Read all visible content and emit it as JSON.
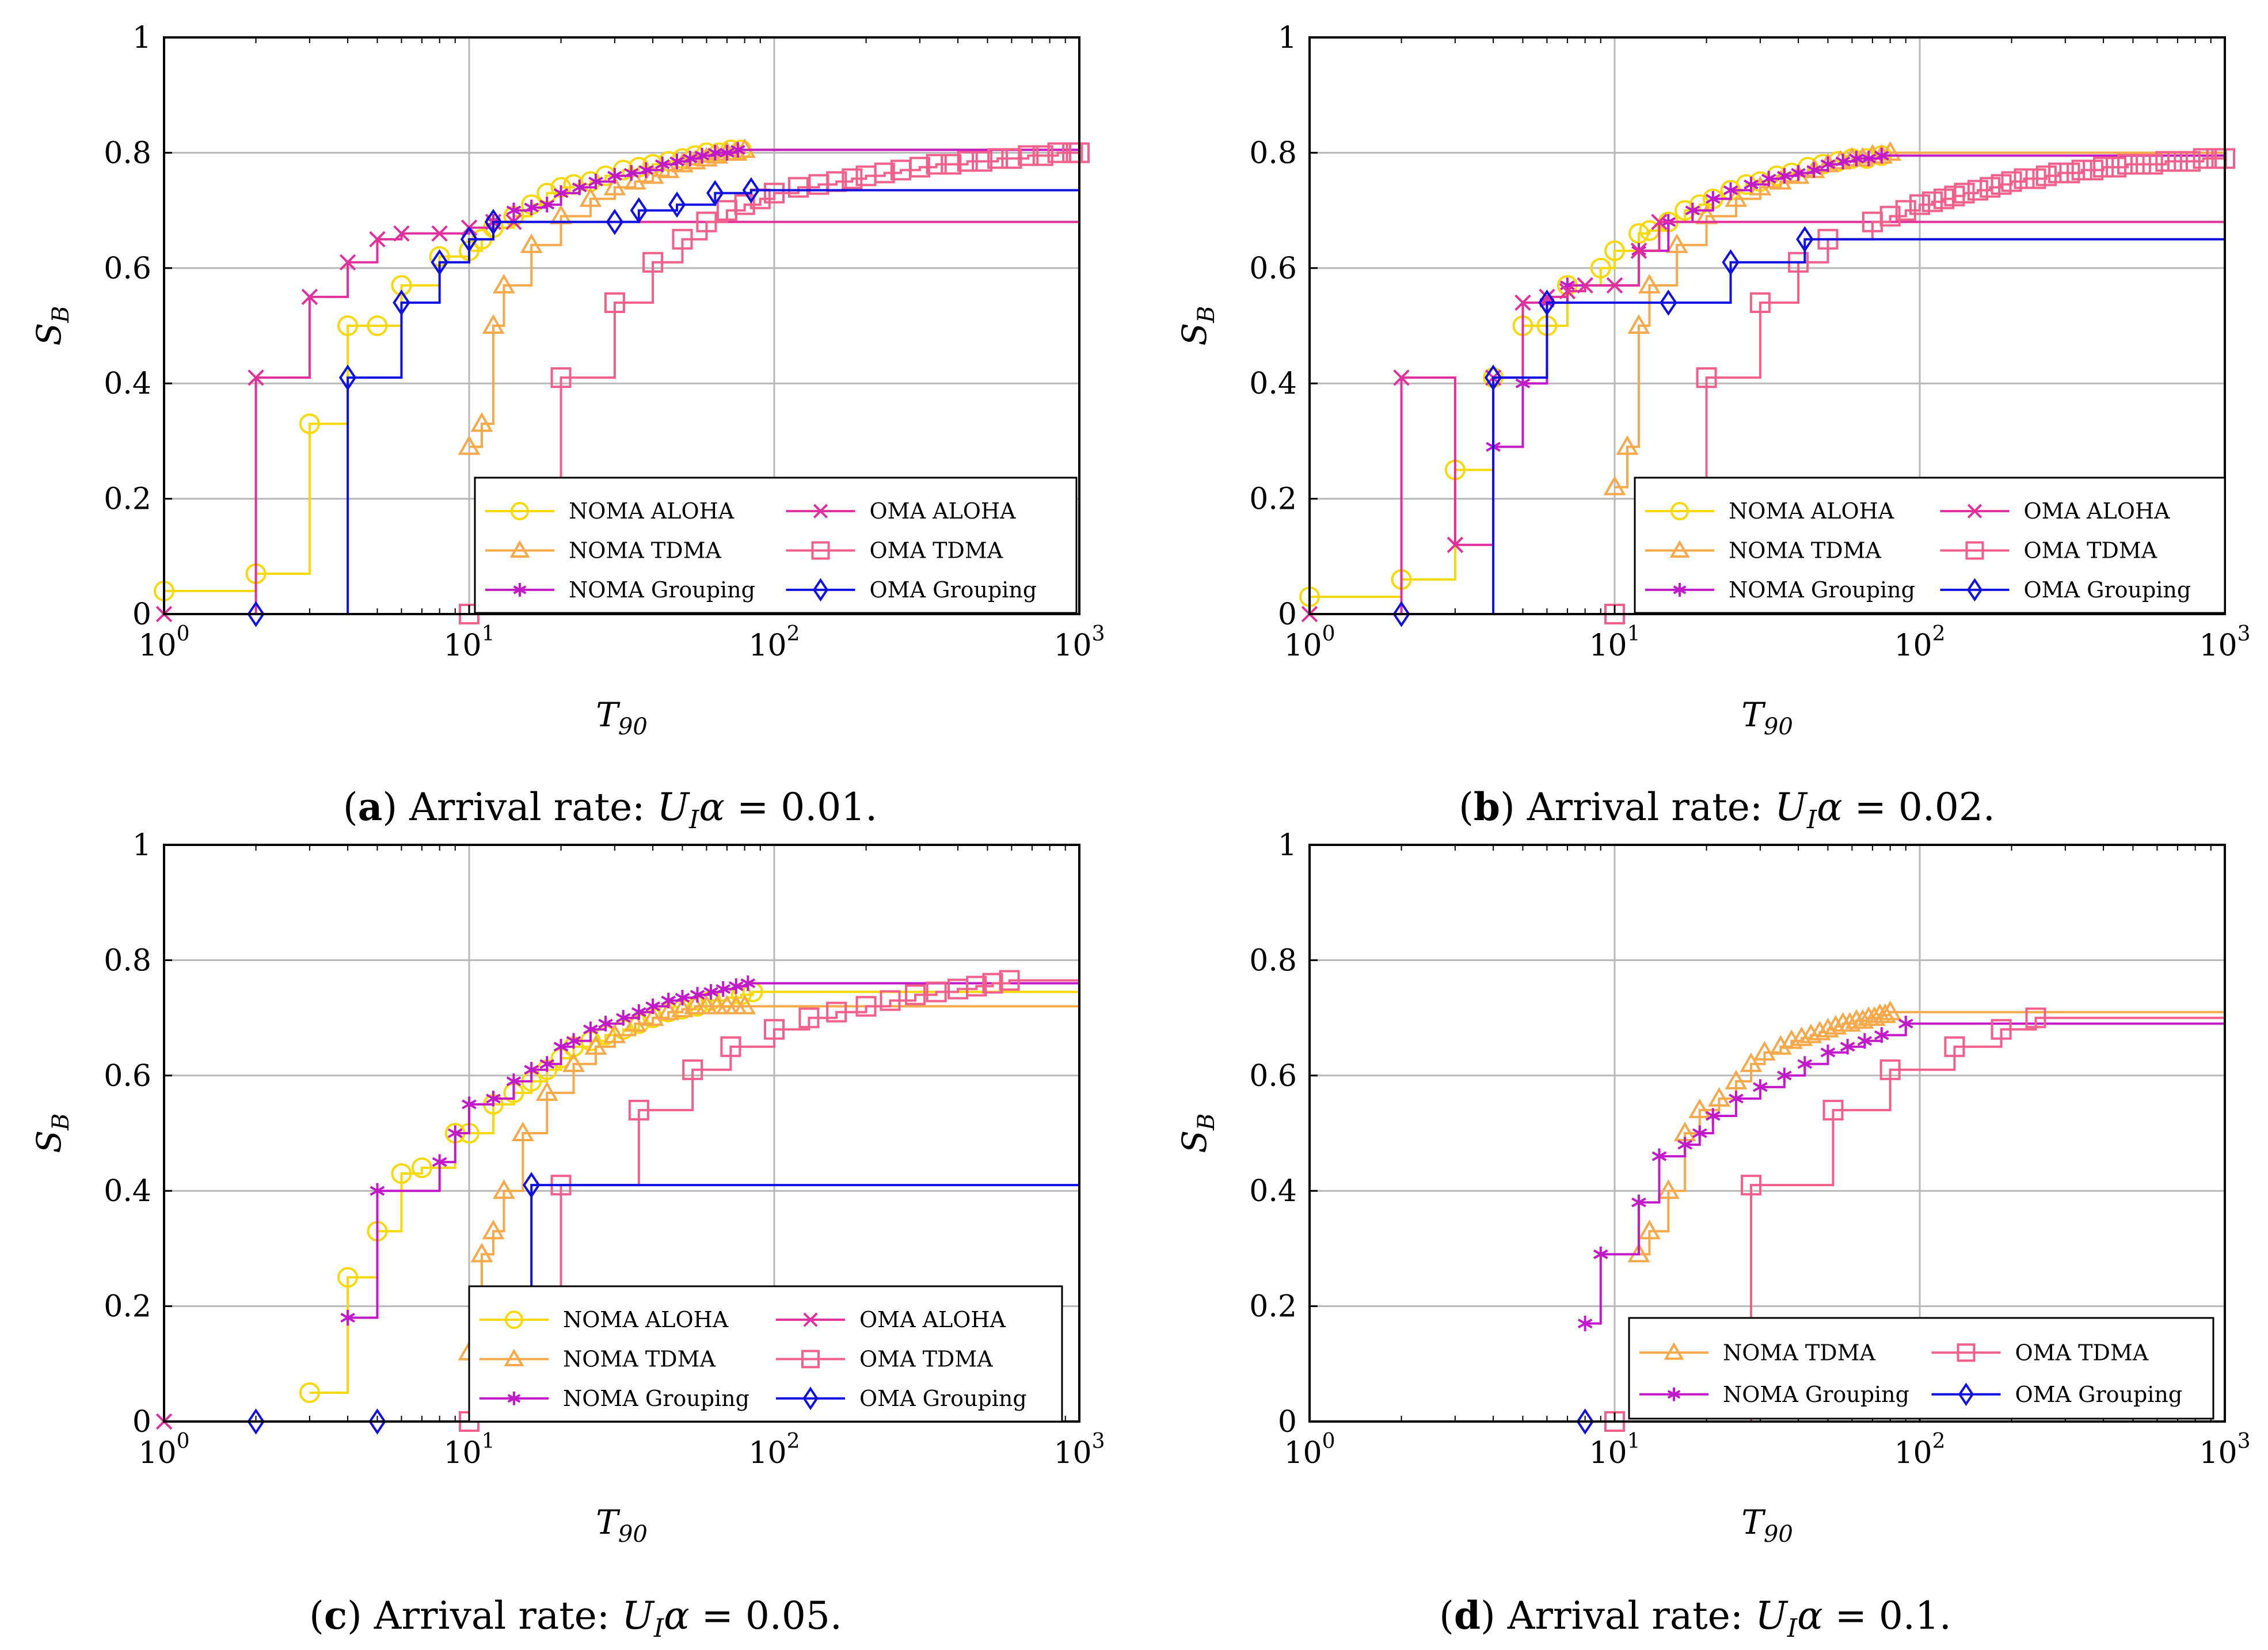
{
  "chart_data": [
    {
      "type": "line",
      "panel": "a",
      "caption": {
        "label": "a",
        "text": "Arrival rate:",
        "math": "U",
        "math_sub": "I",
        "math_alpha": "α",
        "value": " = 0.01."
      },
      "xlabel": "T",
      "xlabel_sub": "90",
      "ylabel": "S",
      "ylabel_sub": "B",
      "xscale": "log",
      "xlim": [
        1,
        1000
      ],
      "ylim": [
        0,
        1
      ],
      "xticks": [
        {
          "base": "10",
          "exp": "0"
        },
        {
          "base": "10",
          "exp": "1"
        },
        {
          "base": "10",
          "exp": "2"
        },
        {
          "base": "10",
          "exp": "3"
        }
      ],
      "yticks": [
        "0",
        "0.2",
        "0.4",
        "0.6",
        "0.8",
        "1"
      ],
      "grid": true,
      "legend_position": "lower-right",
      "series": [
        {
          "name": "NOMA ALOHA",
          "color": "#f5d90a",
          "marker": "circle",
          "x": [
            1,
            2,
            3,
            4,
            5,
            6,
            8,
            10,
            11,
            12,
            14,
            16,
            18,
            20,
            22,
            25,
            28,
            32,
            36,
            40,
            45,
            50,
            55,
            60,
            66,
            72,
            78
          ],
          "y": [
            0.04,
            0.07,
            0.33,
            0.5,
            0.5,
            0.57,
            0.62,
            0.63,
            0.65,
            0.67,
            0.69,
            0.71,
            0.73,
            0.74,
            0.745,
            0.75,
            0.76,
            0.77,
            0.775,
            0.78,
            0.785,
            0.79,
            0.795,
            0.8,
            0.8,
            0.805,
            0.805
          ]
        },
        {
          "name": "NOMA TDMA",
          "color": "#f5a94a",
          "marker": "triangle",
          "x": [
            10,
            11,
            12,
            13,
            16,
            20,
            25,
            30,
            35,
            40,
            45,
            50,
            55,
            60,
            65,
            70,
            75,
            80
          ],
          "y": [
            0.29,
            0.33,
            0.5,
            0.57,
            0.64,
            0.69,
            0.72,
            0.74,
            0.75,
            0.76,
            0.77,
            0.78,
            0.785,
            0.79,
            0.795,
            0.8,
            0.8,
            0.805
          ]
        },
        {
          "name": "NOMA Grouping",
          "color": "#c21ac9",
          "marker": "star",
          "x": [
            12,
            14,
            16,
            18,
            20,
            23,
            26,
            30,
            34,
            38,
            43,
            48,
            53,
            58,
            64,
            70,
            76
          ],
          "y": [
            0.68,
            0.7,
            0.705,
            0.71,
            0.73,
            0.74,
            0.75,
            0.76,
            0.765,
            0.77,
            0.78,
            0.785,
            0.79,
            0.795,
            0.8,
            0.8,
            0.805
          ]
        },
        {
          "name": "OMA ALOHA",
          "color": "#e0309c",
          "marker": "x",
          "x": [
            1,
            2,
            3,
            4,
            5,
            6,
            8,
            10,
            12,
            14
          ],
          "y": [
            0,
            0.41,
            0.55,
            0.61,
            0.65,
            0.66,
            0.66,
            0.67,
            0.68,
            0.68
          ]
        },
        {
          "name": "OMA TDMA",
          "color": "#f0608a",
          "marker": "square",
          "x": [
            10,
            20,
            30,
            40,
            50,
            60,
            70,
            80,
            90,
            100,
            120,
            140,
            160,
            180,
            200,
            230,
            260,
            300,
            340,
            380,
            430,
            480,
            540,
            600,
            680,
            760,
            850,
            950,
            1000
          ],
          "y": [
            0,
            0.41,
            0.54,
            0.61,
            0.65,
            0.68,
            0.7,
            0.71,
            0.72,
            0.73,
            0.74,
            0.745,
            0.75,
            0.755,
            0.76,
            0.765,
            0.77,
            0.775,
            0.78,
            0.78,
            0.785,
            0.785,
            0.79,
            0.79,
            0.795,
            0.795,
            0.8,
            0.8,
            0.8
          ]
        },
        {
          "name": "OMA Grouping",
          "color": "#1010e0",
          "marker": "diamond",
          "x": [
            2,
            4,
            6,
            8,
            10,
            12,
            30,
            36,
            48,
            64,
            84
          ],
          "y": [
            0,
            0.41,
            0.54,
            0.61,
            0.65,
            0.68,
            0.68,
            0.7,
            0.71,
            0.73,
            0.735
          ]
        }
      ]
    },
    {
      "type": "line",
      "panel": "b",
      "caption": {
        "label": "b",
        "text": "Arrival rate:",
        "math": "U",
        "math_sub": "I",
        "math_alpha": "α",
        "value": " = 0.02."
      },
      "xlabel": "T",
      "xlabel_sub": "90",
      "ylabel": "S",
      "ylabel_sub": "B",
      "xscale": "log",
      "xlim": [
        1,
        1000
      ],
      "ylim": [
        0,
        1
      ],
      "xticks": [
        {
          "base": "10",
          "exp": "0"
        },
        {
          "base": "10",
          "exp": "1"
        },
        {
          "base": "10",
          "exp": "2"
        },
        {
          "base": "10",
          "exp": "3"
        }
      ],
      "yticks": [
        "0",
        "0.2",
        "0.4",
        "0.6",
        "0.8",
        "1"
      ],
      "grid": true,
      "legend_position": "lower-right",
      "series": [
        {
          "name": "NOMA ALOHA",
          "color": "#f5d90a",
          "marker": "circle",
          "x": [
            1,
            2,
            3,
            4,
            5,
            6,
            7,
            9,
            10,
            12,
            13,
            15,
            17,
            19,
            21,
            24,
            27,
            30,
            34,
            38,
            43,
            48,
            54,
            60,
            67,
            75
          ],
          "y": [
            0.03,
            0.06,
            0.25,
            0.41,
            0.5,
            0.5,
            0.57,
            0.6,
            0.63,
            0.66,
            0.665,
            0.68,
            0.7,
            0.71,
            0.72,
            0.735,
            0.745,
            0.75,
            0.76,
            0.765,
            0.775,
            0.78,
            0.785,
            0.79,
            0.79,
            0.795
          ]
        },
        {
          "name": "NOMA TDMA",
          "color": "#f5a94a",
          "marker": "triangle",
          "x": [
            10,
            11,
            12,
            13,
            16,
            20,
            25,
            30,
            35,
            40,
            45,
            50,
            55,
            60,
            65,
            70,
            75,
            80
          ],
          "y": [
            0.22,
            0.29,
            0.5,
            0.57,
            0.64,
            0.69,
            0.72,
            0.74,
            0.75,
            0.76,
            0.77,
            0.78,
            0.785,
            0.79,
            0.79,
            0.795,
            0.795,
            0.8
          ]
        },
        {
          "name": "NOMA Grouping",
          "color": "#c21ac9",
          "marker": "star",
          "x": [
            4,
            5,
            6,
            7,
            12,
            15,
            18,
            21,
            24,
            28,
            32,
            36,
            40,
            45,
            50,
            56,
            62,
            68,
            75
          ],
          "y": [
            0.29,
            0.4,
            0.54,
            0.57,
            0.63,
            0.68,
            0.7,
            0.72,
            0.735,
            0.745,
            0.755,
            0.76,
            0.765,
            0.77,
            0.78,
            0.785,
            0.79,
            0.79,
            0.795
          ]
        },
        {
          "name": "OMA ALOHA",
          "color": "#e0309c",
          "marker": "x",
          "x": [
            1,
            2,
            3,
            4,
            5,
            6,
            7,
            8,
            10,
            12,
            14
          ],
          "y": [
            0,
            0.41,
            0.12,
            0.41,
            0.54,
            0.55,
            0.56,
            0.57,
            0.57,
            0.63,
            0.68
          ]
        },
        {
          "name": "OMA TDMA",
          "color": "#f0608a",
          "marker": "square",
          "x": [
            10,
            20,
            30,
            40,
            50,
            70,
            80,
            90,
            100,
            110,
            120,
            130,
            140,
            155,
            170,
            185,
            200,
            220,
            240,
            260,
            285,
            310,
            340,
            370,
            400,
            440,
            480,
            530,
            580,
            640,
            700,
            770,
            850,
            940,
            1000
          ],
          "y": [
            0,
            0.41,
            0.54,
            0.61,
            0.65,
            0.68,
            0.69,
            0.7,
            0.71,
            0.715,
            0.72,
            0.725,
            0.73,
            0.735,
            0.74,
            0.745,
            0.75,
            0.755,
            0.755,
            0.76,
            0.765,
            0.765,
            0.77,
            0.77,
            0.775,
            0.775,
            0.78,
            0.78,
            0.78,
            0.785,
            0.785,
            0.785,
            0.79,
            0.79,
            0.79
          ]
        },
        {
          "name": "OMA Grouping",
          "color": "#1010e0",
          "marker": "diamond",
          "x": [
            2,
            4,
            6,
            15,
            24,
            42
          ],
          "y": [
            0,
            0.41,
            0.54,
            0.54,
            0.61,
            0.65
          ]
        }
      ]
    },
    {
      "type": "line",
      "panel": "c",
      "caption": {
        "label": "c",
        "text": "Arrival rate:",
        "math": "U",
        "math_sub": "I",
        "math_alpha": "α",
        "value": " = 0.05."
      },
      "xlabel": "T",
      "xlabel_sub": "90",
      "ylabel": "S",
      "ylabel_sub": "B",
      "xscale": "log",
      "xlim": [
        1,
        1000
      ],
      "ylim": [
        0,
        1
      ],
      "xticks": [
        {
          "base": "10",
          "exp": "0"
        },
        {
          "base": "10",
          "exp": "1"
        },
        {
          "base": "10",
          "exp": "2"
        },
        {
          "base": "10",
          "exp": "3"
        }
      ],
      "yticks": [
        "0",
        "0.2",
        "0.4",
        "0.6",
        "0.8",
        "1"
      ],
      "grid": true,
      "legend_position": "lower-right",
      "series": [
        {
          "name": "NOMA ALOHA",
          "color": "#f5d90a",
          "marker": "circle",
          "x": [
            3,
            4,
            5,
            6,
            7,
            9,
            10,
            12,
            14,
            16,
            18,
            20,
            22,
            25,
            28,
            32,
            36,
            40,
            45,
            50,
            56,
            62,
            70,
            78,
            85
          ],
          "y": [
            0.05,
            0.25,
            0.33,
            0.43,
            0.44,
            0.5,
            0.5,
            0.55,
            0.57,
            0.59,
            0.61,
            0.63,
            0.65,
            0.66,
            0.67,
            0.68,
            0.69,
            0.7,
            0.71,
            0.715,
            0.72,
            0.73,
            0.735,
            0.74,
            0.745
          ]
        },
        {
          "name": "NOMA TDMA",
          "color": "#f5a94a",
          "marker": "triangle",
          "x": [
            10,
            11,
            12,
            13,
            15,
            18,
            22,
            26,
            30,
            35,
            40,
            45,
            50,
            55,
            60,
            65,
            70,
            75,
            80
          ],
          "y": [
            0.12,
            0.29,
            0.33,
            0.4,
            0.5,
            0.57,
            0.62,
            0.65,
            0.67,
            0.69,
            0.7,
            0.71,
            0.715,
            0.72,
            0.72,
            0.72,
            0.72,
            0.72,
            0.72
          ]
        },
        {
          "name": "NOMA Grouping",
          "color": "#c21ac9",
          "marker": "star",
          "x": [
            4,
            5,
            8,
            9,
            10,
            12,
            14,
            16,
            18,
            20,
            22,
            25,
            28,
            32,
            36,
            40,
            45,
            50,
            56,
            62,
            68,
            75,
            82
          ],
          "y": [
            0.18,
            0.4,
            0.45,
            0.5,
            0.55,
            0.56,
            0.59,
            0.61,
            0.62,
            0.65,
            0.66,
            0.68,
            0.69,
            0.7,
            0.71,
            0.72,
            0.73,
            0.735,
            0.74,
            0.745,
            0.75,
            0.755,
            0.76
          ]
        },
        {
          "name": "OMA ALOHA",
          "color": "#e0309c",
          "marker": "x",
          "x": [
            1
          ],
          "y": [
            0
          ]
        },
        {
          "name": "OMA TDMA",
          "color": "#f0608a",
          "marker": "square",
          "x": [
            10,
            20,
            36,
            54,
            72,
            100,
            130,
            160,
            200,
            240,
            290,
            340,
            400,
            460,
            520,
            590
          ],
          "y": [
            0,
            0.41,
            0.54,
            0.61,
            0.65,
            0.68,
            0.7,
            0.71,
            0.72,
            0.73,
            0.74,
            0.745,
            0.75,
            0.755,
            0.76,
            0.765
          ]
        },
        {
          "name": "OMA Grouping",
          "color": "#1010e0",
          "marker": "diamond",
          "x": [
            2,
            5,
            16
          ],
          "y": [
            0,
            0,
            0.41
          ]
        }
      ]
    },
    {
      "type": "line",
      "panel": "d",
      "caption": {
        "label": "d",
        "text": "Arrival rate:",
        "math": "U",
        "math_sub": "I",
        "math_alpha": "α",
        "value": " = 0.1."
      },
      "xlabel": "T",
      "xlabel_sub": "90",
      "ylabel": "S",
      "ylabel_sub": "B",
      "xscale": "log",
      "xlim": [
        1,
        1000
      ],
      "ylim": [
        0,
        1
      ],
      "xticks": [
        {
          "base": "10",
          "exp": "0"
        },
        {
          "base": "10",
          "exp": "1"
        },
        {
          "base": "10",
          "exp": "2"
        },
        {
          "base": "10",
          "exp": "3"
        }
      ],
      "yticks": [
        "0",
        "0.2",
        "0.4",
        "0.6",
        "0.8",
        "1"
      ],
      "grid": true,
      "legend_position": "lower-right",
      "series": [
        {
          "name": "NOMA TDMA",
          "color": "#f5a94a",
          "marker": "triangle",
          "x": [
            12,
            13,
            15,
            17,
            19,
            22,
            25,
            28,
            31,
            35,
            38,
            41,
            44,
            47,
            50,
            53,
            56,
            59,
            62,
            65,
            68,
            71,
            74,
            77,
            80
          ],
          "y": [
            0.29,
            0.33,
            0.4,
            0.5,
            0.54,
            0.56,
            0.59,
            0.62,
            0.64,
            0.65,
            0.66,
            0.665,
            0.67,
            0.675,
            0.68,
            0.685,
            0.69,
            0.69,
            0.695,
            0.695,
            0.7,
            0.7,
            0.705,
            0.705,
            0.71
          ]
        },
        {
          "name": "NOMA Grouping",
          "color": "#c21ac9",
          "marker": "star",
          "x": [
            8,
            9,
            12,
            14,
            17,
            19,
            21,
            25,
            30,
            36,
            42,
            50,
            58,
            66,
            75,
            90
          ],
          "y": [
            0.17,
            0.29,
            0.38,
            0.46,
            0.48,
            0.5,
            0.53,
            0.56,
            0.58,
            0.6,
            0.62,
            0.64,
            0.65,
            0.66,
            0.67,
            0.69
          ]
        },
        {
          "name": "OMA TDMA",
          "color": "#f0608a",
          "marker": "square",
          "x": [
            10,
            28,
            52,
            80,
            130,
            185,
            240
          ],
          "y": [
            0,
            0.41,
            0.54,
            0.61,
            0.65,
            0.68,
            0.7
          ]
        },
        {
          "name": "OMA Grouping",
          "color": "#1010e0",
          "marker": "diamond",
          "x": [
            8
          ],
          "y": [
            0
          ]
        }
      ]
    }
  ]
}
